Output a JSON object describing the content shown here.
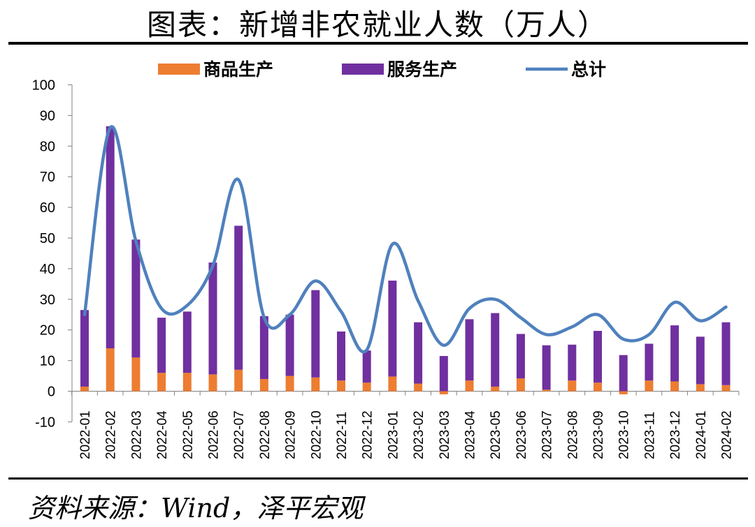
{
  "title": "图表：新增非农就业人数（万人）",
  "source": "资料来源：Wind，泽平宏观",
  "colors": {
    "goods": "#ED7D31",
    "services": "#7030A0",
    "total": "#4F81BD"
  },
  "chart_data": {
    "type": "bar",
    "stacked": true,
    "categories": [
      "2022-01",
      "2022-02",
      "2022-03",
      "2022-04",
      "2022-05",
      "2022-06",
      "2022-07",
      "2022-08",
      "2022-09",
      "2022-10",
      "2022-11",
      "2022-12",
      "2023-01",
      "2023-02",
      "2023-03",
      "2023-04",
      "2023-05",
      "2023-06",
      "2023-07",
      "2023-08",
      "2023-09",
      "2023-10",
      "2023-11",
      "2023-12",
      "2024-01",
      "2024-02"
    ],
    "series": [
      {
        "name": "商品生产",
        "type": "bar",
        "values": [
          1.5,
          14,
          11,
          6,
          6,
          5.5,
          7,
          4,
          5,
          4.5,
          3.5,
          2.8,
          4.8,
          2.5,
          -1,
          3.5,
          1.5,
          4.2,
          0.5,
          3.5,
          2.8,
          -1,
          3.5,
          3.2,
          2.3,
          2
        ]
      },
      {
        "name": "服务生产",
        "type": "bar",
        "values": [
          25,
          72.5,
          38.5,
          18,
          20,
          36.5,
          47,
          20.5,
          20,
          28.5,
          16,
          10.5,
          31.3,
          20,
          11.5,
          20,
          24,
          14.5,
          14.5,
          11.7,
          16.9,
          11.8,
          12,
          18.3,
          15.5,
          20.5
        ]
      },
      {
        "name": "总计",
        "type": "line",
        "values": [
          25,
          86,
          49,
          27,
          28,
          41,
          69,
          24,
          25,
          36,
          26,
          13.5,
          48,
          29.5,
          15,
          27,
          30,
          24,
          18.5,
          21,
          25,
          17,
          18.5,
          29,
          23,
          27.5
        ]
      }
    ],
    "ylim": [
      -10,
      100
    ],
    "yticks": [
      -10,
      0,
      10,
      20,
      30,
      40,
      50,
      60,
      70,
      80,
      90,
      100
    ],
    "legend": "top"
  }
}
